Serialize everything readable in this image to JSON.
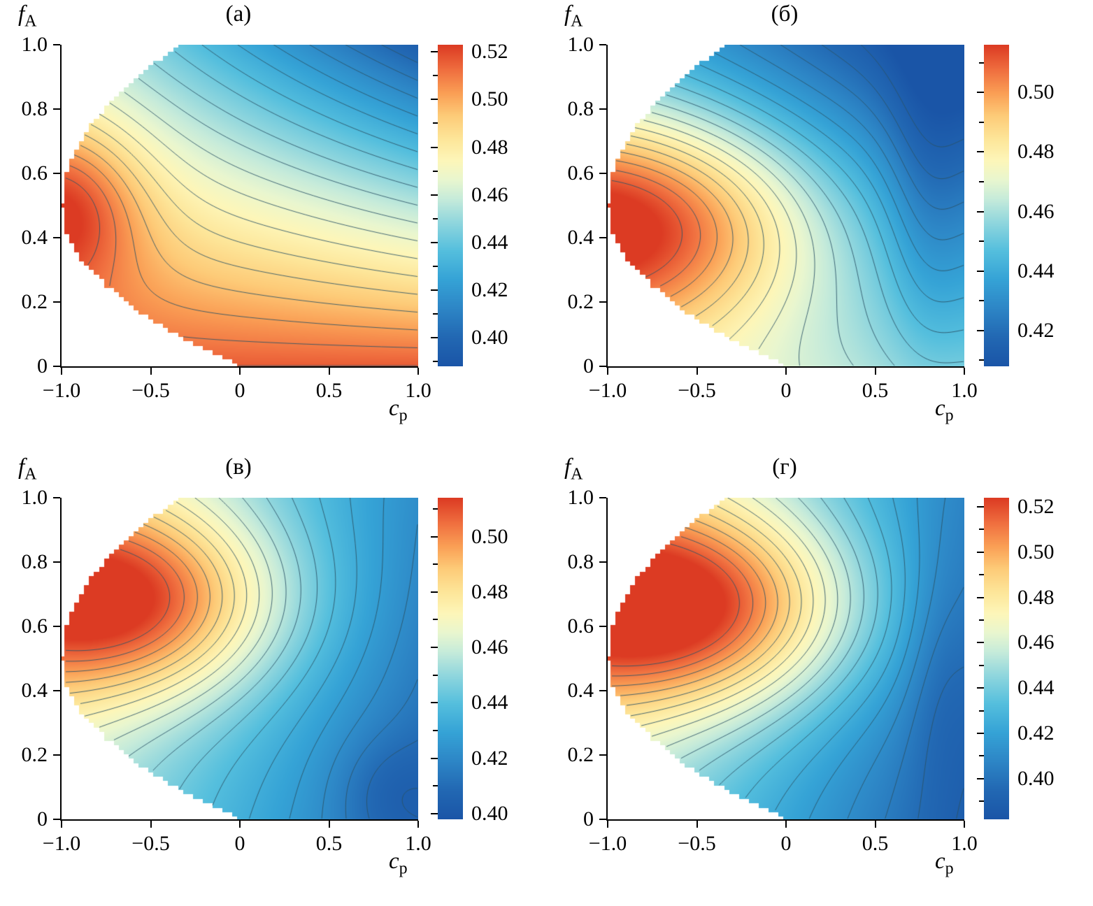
{
  "figure": {
    "background": "#ffffff",
    "contour_line_color": "rgba(42,82,102,0.85)",
    "levels": 20,
    "domain": {
      "ku": 3.0,
      "kl": 2.0,
      "steps": 72
    },
    "colormap": [
      [
        0.0,
        "#1a55a7"
      ],
      [
        0.09,
        "#2268b3"
      ],
      [
        0.18,
        "#2d86c6"
      ],
      [
        0.27,
        "#35a3d6"
      ],
      [
        0.36,
        "#55bfdd"
      ],
      [
        0.45,
        "#92d7dd"
      ],
      [
        0.52,
        "#c6ebda"
      ],
      [
        0.58,
        "#e9f6cf"
      ],
      [
        0.64,
        "#fdf6b9"
      ],
      [
        0.71,
        "#fde598"
      ],
      [
        0.78,
        "#fdcb78"
      ],
      [
        0.85,
        "#fa9f55"
      ],
      [
        0.92,
        "#f07040"
      ],
      [
        1.0,
        "#dc3b23"
      ]
    ],
    "panels": [
      {
        "title": "(а)",
        "x_axis": {
          "label": "c",
          "sub": "p",
          "ticks": [
            {
              "v": -1,
              "label": "−1.0"
            },
            {
              "v": -0.5,
              "label": "−0.5"
            },
            {
              "v": 0,
              "label": "0"
            },
            {
              "v": 0.5,
              "label": "0.5"
            },
            {
              "v": 1,
              "label": "1.0"
            }
          ]
        },
        "y_axis": {
          "label": "f",
          "sub": "A",
          "ticks": [
            {
              "v": 1,
              "label": "1.0"
            },
            {
              "v": 0.8,
              "label": "0.8"
            },
            {
              "v": 0.6,
              "label": "0.6"
            },
            {
              "v": 0.4,
              "label": "0.4"
            },
            {
              "v": 0.2,
              "label": "0.2"
            },
            {
              "v": 0,
              "label": "0"
            }
          ]
        },
        "colorbar": {
          "min": 0.388,
          "max": 0.523,
          "ticks": [
            {
              "v": 0.52,
              "label": "0.52"
            },
            {
              "v": 0.5,
              "label": "0.50"
            },
            {
              "v": 0.48,
              "label": "0.48"
            },
            {
              "v": 0.46,
              "label": "0.46"
            },
            {
              "v": 0.44,
              "label": "0.44"
            },
            {
              "v": 0.42,
              "label": "0.42"
            },
            {
              "v": 0.4,
              "label": "0.40"
            }
          ]
        },
        "field": {
          "c0": 0.95,
          "cf": -0.405,
          "ct": 0,
          "cft": -0.495,
          "g": [
            {
              "amp": 0.27,
              "tc": 0,
              "fc": 0.5,
              "tw": 0.22,
              "fw": 0.25
            }
          ]
        }
      },
      {
        "title": "(б)",
        "x_axis": {
          "label": "c",
          "sub": "p",
          "ticks": [
            {
              "v": -1,
              "label": "−1.0"
            },
            {
              "v": -0.5,
              "label": "−0.5"
            },
            {
              "v": 0,
              "label": "0"
            },
            {
              "v": 0.5,
              "label": "0.5"
            },
            {
              "v": 1,
              "label": "1.0"
            }
          ]
        },
        "y_axis": {
          "label": "f",
          "sub": "A",
          "ticks": [
            {
              "v": 1,
              "label": "1.0"
            },
            {
              "v": 0.8,
              "label": "0.8"
            },
            {
              "v": 0.6,
              "label": "0.6"
            },
            {
              "v": 0.4,
              "label": "0.4"
            },
            {
              "v": 0.2,
              "label": "0.2"
            },
            {
              "v": 0,
              "label": "0"
            }
          ]
        },
        "colorbar": {
          "min": 0.408,
          "max": 0.516,
          "ticks": [
            {
              "v": 0.5,
              "label": "0.50"
            },
            {
              "v": 0.48,
              "label": "0.48"
            },
            {
              "v": 0.46,
              "label": "0.46"
            },
            {
              "v": 0.44,
              "label": "0.44"
            },
            {
              "v": 0.42,
              "label": "0.42"
            }
          ]
        },
        "field": {
          "c0": 0.6,
          "cf": -0.3,
          "ct": -0.18,
          "cft": -0.18,
          "g": [
            {
              "amp": 0.6,
              "tc": 0.02,
              "fc": 0.45,
              "tw": 0.55,
              "fw": 0.35
            },
            {
              "amp": -0.1,
              "tc": 0.9,
              "fc": 0.55,
              "tw": 0.12,
              "fw": 0.55
            }
          ]
        }
      },
      {
        "title": "(в)",
        "x_axis": {
          "label": "c",
          "sub": "p",
          "ticks": [
            {
              "v": -1,
              "label": "−1.0"
            },
            {
              "v": -0.5,
              "label": "−0.5"
            },
            {
              "v": 0,
              "label": "0"
            },
            {
              "v": 0.5,
              "label": "0.5"
            },
            {
              "v": 1,
              "label": "1.0"
            }
          ]
        },
        "y_axis": {
          "label": "f",
          "sub": "A",
          "ticks": [
            {
              "v": 1,
              "label": "1.0"
            },
            {
              "v": 0.8,
              "label": "0.8"
            },
            {
              "v": 0.6,
              "label": "0.6"
            },
            {
              "v": 0.4,
              "label": "0.4"
            },
            {
              "v": 0.2,
              "label": "0.2"
            },
            {
              "v": 0,
              "label": "0"
            }
          ]
        },
        "colorbar": {
          "min": 0.398,
          "max": 0.514,
          "ticks": [
            {
              "v": 0.5,
              "label": "0.50"
            },
            {
              "v": 0.48,
              "label": "0.48"
            },
            {
              "v": 0.46,
              "label": "0.46"
            },
            {
              "v": 0.44,
              "label": "0.44"
            },
            {
              "v": 0.42,
              "label": "0.42"
            },
            {
              "v": 0.4,
              "label": "0.40"
            }
          ]
        },
        "field": {
          "c0": 0.52,
          "cf": 0.1,
          "ct": -0.42,
          "cft": 0,
          "g": [
            {
              "amp": 0.55,
              "tc": 0.15,
              "fc": 0.68,
              "tw": 0.45,
              "fw": 0.3
            },
            {
              "amp": -0.08,
              "tc": 0.92,
              "fc": 0.08,
              "tw": 0.15,
              "fw": 0.18
            }
          ]
        }
      },
      {
        "title": "(г)",
        "x_axis": {
          "label": "c",
          "sub": "p",
          "ticks": [
            {
              "v": -1,
              "label": "−1.0"
            },
            {
              "v": -0.5,
              "label": "−0.5"
            },
            {
              "v": 0,
              "label": "0"
            },
            {
              "v": 0.5,
              "label": "0.5"
            },
            {
              "v": 1,
              "label": "1.0"
            }
          ]
        },
        "y_axis": {
          "label": "f",
          "sub": "A",
          "ticks": [
            {
              "v": 1,
              "label": "1.0"
            },
            {
              "v": 0.8,
              "label": "0.8"
            },
            {
              "v": 0.6,
              "label": "0.6"
            },
            {
              "v": 0.4,
              "label": "0.4"
            },
            {
              "v": 0.2,
              "label": "0.2"
            },
            {
              "v": 0,
              "label": "0"
            }
          ]
        },
        "colorbar": {
          "min": 0.382,
          "max": 0.524,
          "ticks": [
            {
              "v": 0.52,
              "label": "0.52"
            },
            {
              "v": 0.5,
              "label": "0.50"
            },
            {
              "v": 0.48,
              "label": "0.48"
            },
            {
              "v": 0.46,
              "label": "0.46"
            },
            {
              "v": 0.44,
              "label": "0.44"
            },
            {
              "v": 0.42,
              "label": "0.42"
            },
            {
              "v": 0.4,
              "label": "0.40"
            }
          ]
        },
        "field": {
          "c0": 0.5,
          "cf": 0.12,
          "ct": -0.45,
          "cft": 0,
          "g": [
            {
              "amp": 0.62,
              "tc": 0.18,
              "fc": 0.66,
              "tw": 0.5,
              "fw": 0.32
            },
            {
              "amp": -0.06,
              "tc": 0.93,
              "fc": 0.5,
              "tw": 0.1,
              "fw": 0.4
            }
          ]
        }
      }
    ]
  },
  "chart_data": [
    {
      "type": "contour",
      "panel": "(а)",
      "xlabel": "c_p",
      "ylabel": "f_A",
      "x_range": [
        -1.0,
        1.0
      ],
      "y_range": [
        0,
        1.0
      ],
      "x_ticks": [
        -1.0,
        -0.5,
        0,
        0.5,
        1.0
      ],
      "y_ticks": [
        0,
        0.2,
        0.4,
        0.6,
        0.8,
        1.0
      ],
      "colorbar_ticks": [
        0.4,
        0.42,
        0.44,
        0.46,
        0.48,
        0.5,
        0.52
      ],
      "value_range": [
        0.39,
        0.52
      ],
      "max": {
        "value": 0.52,
        "at": {
          "c_p": -1.0,
          "f_A": 0.5
        }
      },
      "min": {
        "value": 0.39,
        "at": {
          "c_p": 1.0,
          "f_A": 1.0
        }
      },
      "domain": "wedge: single point f_A=0.5 at c_p=−1; upper boundary reaches f_A=1 near c_p≈−0.35, lower boundary reaches f_A=0 near c_p≈0; full 0–1 span for c_p≥0",
      "description": "Filled contour map. Orange‑red maximum at the left apex and along the bottom edge, decreasing diagonally to dark blue at the top‑right corner; contour lines slant from upper left to lower right and bunch near the right edge."
    },
    {
      "type": "contour",
      "panel": "(б)",
      "xlabel": "c_p",
      "ylabel": "f_A",
      "x_range": [
        -1.0,
        1.0
      ],
      "y_range": [
        0,
        1.0
      ],
      "x_ticks": [
        -1.0,
        -0.5,
        0,
        0.5,
        1.0
      ],
      "y_ticks": [
        0,
        0.2,
        0.4,
        0.6,
        0.8,
        1.0
      ],
      "colorbar_ticks": [
        0.42,
        0.44,
        0.46,
        0.48,
        0.5
      ],
      "value_range": [
        0.41,
        0.515
      ],
      "max": {
        "value": 0.51,
        "at": {
          "c_p": -1.0,
          "f_A": 0.5
        }
      },
      "min": {
        "value": 0.41,
        "at": {
          "c_p": 0.9,
          "f_A": 1.0
        }
      },
      "domain": "same wedge domain as panel (а)",
      "description": "Red‑orange lobe extends from the apex to about c_p≈0.2 around f_A≈0.4; nested oval contours around it; blue region on the right with a vertical trough near c_p≈0.85; light cyan along the bottom right."
    },
    {
      "type": "contour",
      "panel": "(в)",
      "xlabel": "c_p",
      "ylabel": "f_A",
      "x_range": [
        -1.0,
        1.0
      ],
      "y_range": [
        0,
        1.0
      ],
      "x_ticks": [
        -1.0,
        -0.5,
        0,
        0.5,
        1.0
      ],
      "y_ticks": [
        0,
        0.2,
        0.4,
        0.6,
        0.8,
        1.0
      ],
      "colorbar_ticks": [
        0.4,
        0.42,
        0.44,
        0.46,
        0.48,
        0.5
      ],
      "value_range": [
        0.4,
        0.51
      ],
      "max": {
        "value": 0.51,
        "at": {
          "c_p": -1.0,
          "f_A": 0.5
        }
      },
      "min": {
        "value": 0.4,
        "at": {
          "c_p": 0.9,
          "f_A": 0.1
        }
      },
      "domain": "same wedge domain as panel (а)",
      "description": "Orange band hugs the upper‑left boundary from the apex up to f_A≈0.9; values fall toward the bottom‑right where dark blue dominates, with a small closed contour near (0.9, 0.1); contours become nearly vertical on the right."
    },
    {
      "type": "contour",
      "panel": "(г)",
      "xlabel": "c_p",
      "ylabel": "f_A",
      "x_range": [
        -1.0,
        1.0
      ],
      "y_range": [
        0,
        1.0
      ],
      "x_ticks": [
        -1.0,
        -0.5,
        0,
        0.5,
        1.0
      ],
      "y_ticks": [
        0,
        0.2,
        0.4,
        0.6,
        0.8,
        1.0
      ],
      "colorbar_ticks": [
        0.4,
        0.42,
        0.44,
        0.46,
        0.48,
        0.5,
        0.52
      ],
      "value_range": [
        0.38,
        0.52
      ],
      "max": {
        "value": 0.52,
        "at": {
          "c_p": -1.0,
          "f_A": 0.5
        }
      },
      "min": {
        "value": 0.38,
        "at": {
          "c_p": 1.0,
          "f_A": 0.1
        }
      },
      "domain": "same wedge domain as panel (а)",
      "description": "Like panel (в) but with a brighter, broader orange ridge along the upper‑left boundary reaching pale yellow near the top centre; dark blue across the bottom‑right and right edge."
    }
  ]
}
